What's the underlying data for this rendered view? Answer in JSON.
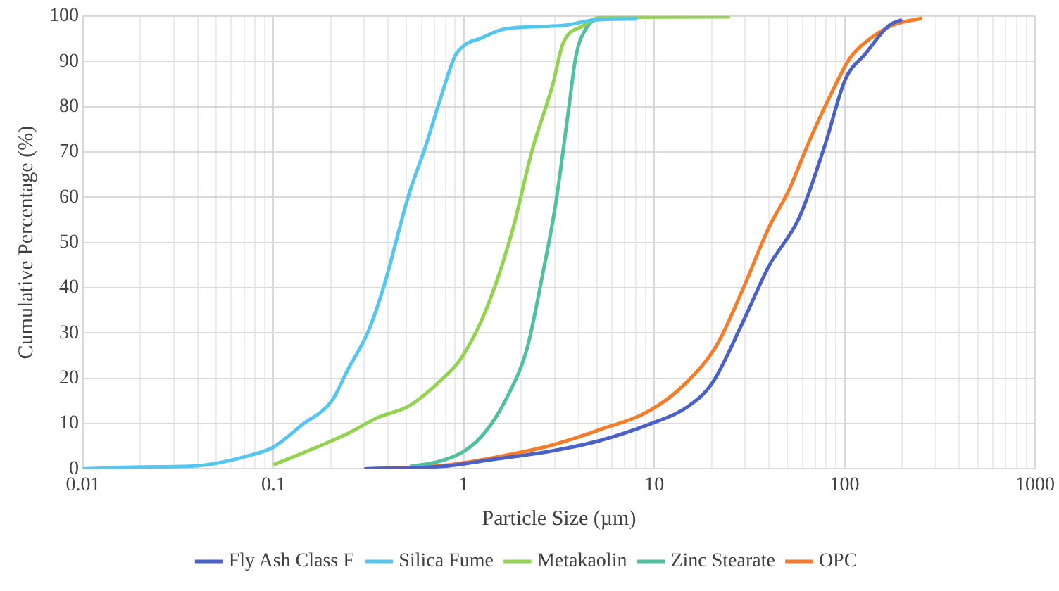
{
  "chart_data": {
    "type": "line",
    "xlabel": "Particle Size (µm)",
    "ylabel": "Cumulative Percentage (%)",
    "log": "x",
    "grid": true,
    "legend": "bottom",
    "marker": "none",
    "line_style": "solid",
    "xlim": [
      0.01,
      1000
    ],
    "ylim": [
      0,
      100
    ],
    "xticks": [
      0.01,
      {
        "value": 0.02,
        "label": null
      },
      {
        "value": 0.03,
        "label": null
      },
      {
        "value": 0.04,
        "label": null
      },
      {
        "value": 0.05,
        "label": null
      },
      {
        "value": 0.06,
        "label": null
      },
      {
        "value": 0.07,
        "label": null
      },
      {
        "value": 0.08,
        "label": null
      },
      {
        "value": 0.09,
        "label": null
      },
      0.1,
      {
        "value": 0.2,
        "label": null
      },
      {
        "value": 0.3,
        "label": null
      },
      {
        "value": 0.4,
        "label": null
      },
      {
        "value": 0.5,
        "label": null
      },
      {
        "value": 0.6,
        "label": null
      },
      {
        "value": 0.7,
        "label": null
      },
      {
        "value": 0.8,
        "label": null
      },
      {
        "value": 0.9,
        "label": null
      },
      1,
      {
        "value": 2,
        "label": null
      },
      {
        "value": 3,
        "label": null
      },
      {
        "value": 4,
        "label": null
      },
      {
        "value": 5,
        "label": null
      },
      {
        "value": 6,
        "label": null
      },
      {
        "value": 7,
        "label": null
      },
      {
        "value": 8,
        "label": null
      },
      {
        "value": 9,
        "label": null
      },
      10,
      {
        "value": 20,
        "label": null
      },
      {
        "value": 30,
        "label": null
      },
      {
        "value": 40,
        "label": null
      },
      {
        "value": 50,
        "label": null
      },
      {
        "value": 60,
        "label": null
      },
      {
        "value": 70,
        "label": null
      },
      {
        "value": 80,
        "label": null
      },
      {
        "value": 90,
        "label": null
      },
      100,
      {
        "value": 200,
        "label": null
      },
      {
        "value": 300,
        "label": null
      },
      {
        "value": 400,
        "label": null
      },
      {
        "value": 500,
        "label": null
      },
      {
        "value": 600,
        "label": null
      },
      {
        "value": 700,
        "label": null
      },
      {
        "value": 800,
        "label": null
      },
      {
        "value": 900,
        "label": null
      },
      1000
    ],
    "yticks": [
      0,
      10,
      20,
      30,
      40,
      50,
      60,
      70,
      80,
      90,
      100
    ],
    "series": [
      {
        "name": "Fly Ash Class F",
        "color": "#4a62c8",
        "x": [
          0.3,
          0.8,
          1.48,
          2.76,
          5.13,
          9.5,
          14.7,
          20.2,
          29.2,
          39.8,
          57.9,
          78.8,
          101,
          128,
          172,
          200
        ],
        "values": [
          0,
          0.6,
          2.2,
          3.8,
          6.2,
          9.9,
          13.5,
          19,
          32.4,
          44.6,
          55.6,
          71.5,
          86.1,
          91.6,
          98,
          99.2
        ]
      },
      {
        "name": "Silica Fume",
        "color": "#55c6f0",
        "x": [
          0.01,
          0.02,
          0.04,
          0.083,
          0.1,
          0.14,
          0.203,
          0.245,
          0.314,
          0.378,
          0.516,
          0.621,
          0.75,
          0.9,
          1.02,
          1.23,
          1.62,
          3.3,
          4.83,
          8.1
        ],
        "values": [
          0,
          0.4,
          0.7,
          3.5,
          4.8,
          9.6,
          15.1,
          21.8,
          30.3,
          40,
          60.8,
          70.5,
          81.5,
          91.2,
          93.7,
          95.1,
          97.1,
          97.9,
          99.1,
          99.4
        ]
      },
      {
        "name": "Metakaolin",
        "color": "#92d450",
        "x": [
          0.1,
          0.169,
          0.245,
          0.356,
          0.516,
          0.75,
          0.96,
          1.31,
          1.79,
          2.29,
          2.94,
          3.3,
          4.26,
          5.13,
          25
        ],
        "values": [
          0.9,
          4.8,
          7.8,
          11.4,
          13.9,
          19.4,
          24.2,
          35.2,
          52.3,
          70.5,
          85.1,
          93.7,
          97.9,
          99.6,
          99.8
        ]
      },
      {
        "name": "Zinc Stearate",
        "color": "#4fc1a0",
        "x": [
          0.52,
          0.75,
          1.02,
          1.31,
          1.68,
          2.15,
          2.58,
          3.03,
          3.54,
          3.88,
          4.39,
          5.13,
          8.1
        ],
        "values": [
          0.5,
          1.7,
          4.1,
          8.4,
          15.7,
          26.7,
          42.5,
          58.3,
          79,
          91.2,
          97.3,
          99.4,
          99.6
        ]
      },
      {
        "name": "OPC",
        "color": "#f57d2a",
        "x": [
          0.304,
          0.8,
          1.48,
          2.76,
          5.13,
          9.5,
          14.7,
          21.4,
          29.2,
          39.8,
          51,
          65.4,
          83.8,
          107,
          137,
          182,
          255
        ],
        "values": [
          0,
          0.8,
          2.6,
          5,
          8.6,
          12.9,
          19,
          27.5,
          39.7,
          53.1,
          61.6,
          72.5,
          82.3,
          90.8,
          95.1,
          98.1,
          99.5
        ]
      }
    ]
  }
}
